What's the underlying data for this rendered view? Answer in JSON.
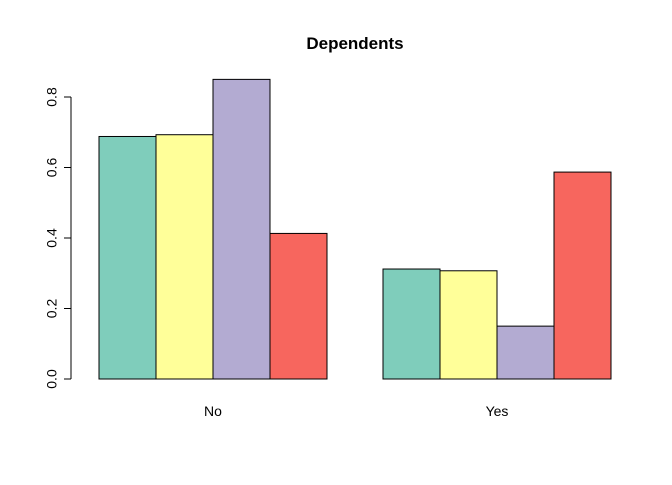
{
  "chart_data": {
    "type": "bar",
    "title": "Dependents",
    "xlabel": "",
    "ylabel": "",
    "categories": [
      "No",
      "Yes"
    ],
    "series": [
      {
        "color": "#7fcdbb",
        "values": [
          0.688,
          0.312
        ]
      },
      {
        "color": "#ffff99",
        "values": [
          0.693,
          0.307
        ]
      },
      {
        "color": "#b3abd2",
        "values": [
          0.85,
          0.15
        ]
      },
      {
        "color": "#f7665e",
        "values": [
          0.413,
          0.587
        ]
      }
    ],
    "ylim": [
      0,
      0.8
    ],
    "yticks": [
      "0.0",
      "0.2",
      "0.4",
      "0.6",
      "0.8"
    ],
    "grid": false,
    "legend": "none"
  }
}
